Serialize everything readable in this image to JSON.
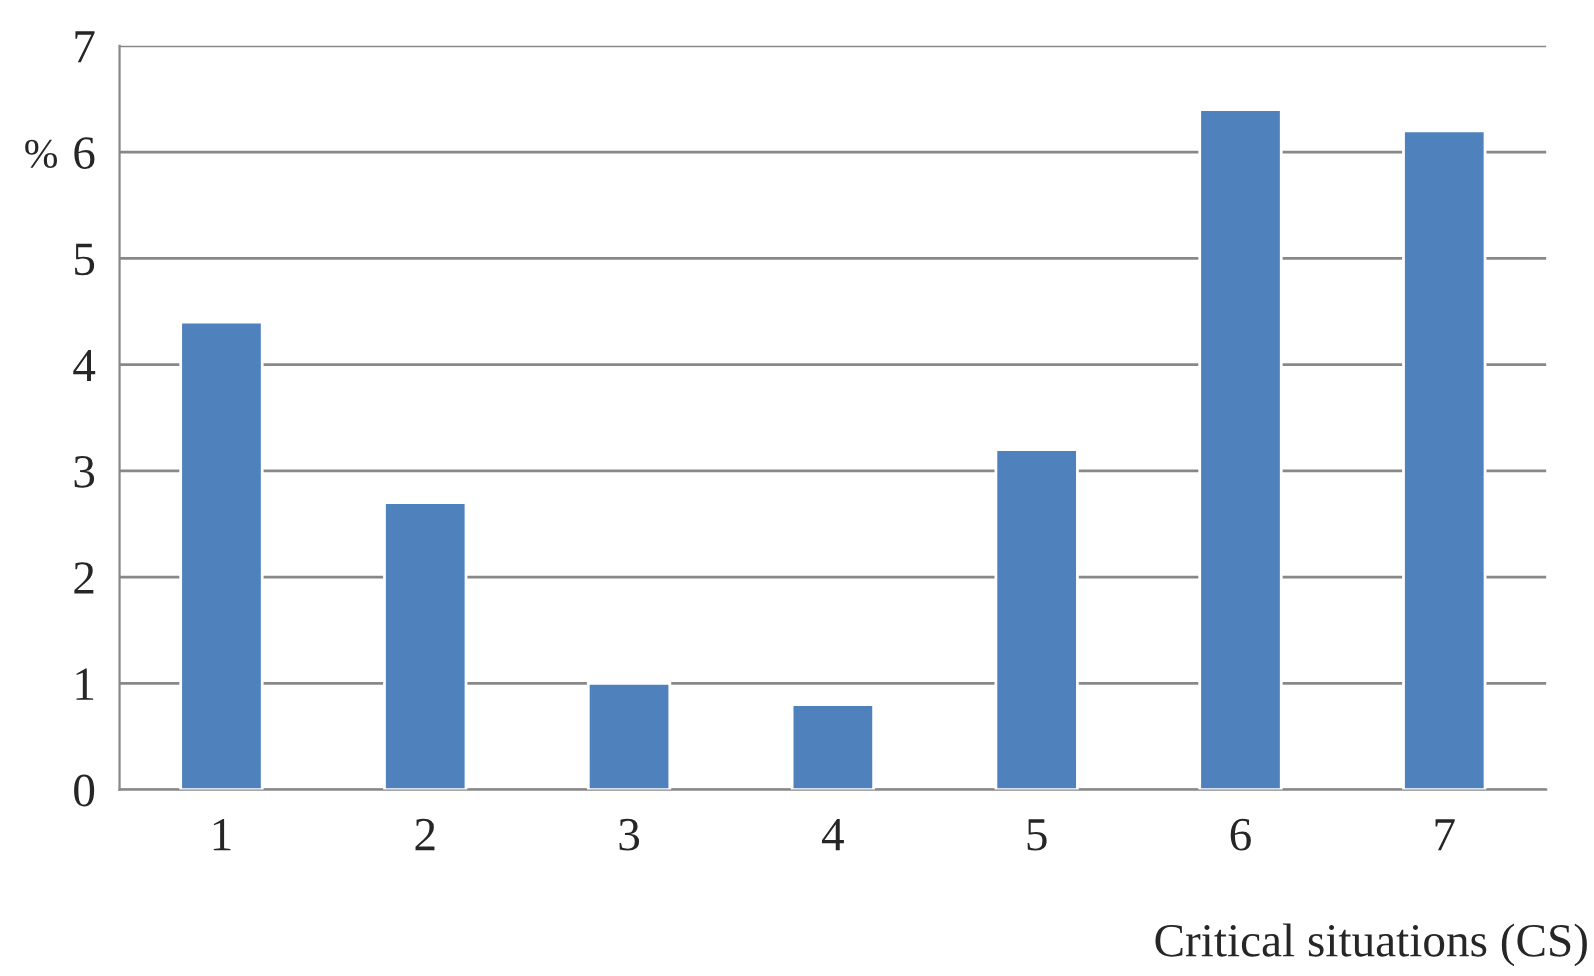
{
  "chart_data": {
    "type": "bar",
    "xlabel": "Critical situations (CS)",
    "ylabel": "%",
    "categories": [
      "1",
      "2",
      "3",
      "4",
      "5",
      "6",
      "7"
    ],
    "values": [
      4.4,
      2.7,
      1.0,
      0.8,
      3.2,
      6.4,
      6.2
    ],
    "color": "#4f81bd",
    "ylim": [
      0,
      7
    ],
    "yticks": [
      0,
      1,
      2,
      3,
      4,
      5,
      6,
      7
    ],
    "grid": "y",
    "legend": false
  }
}
